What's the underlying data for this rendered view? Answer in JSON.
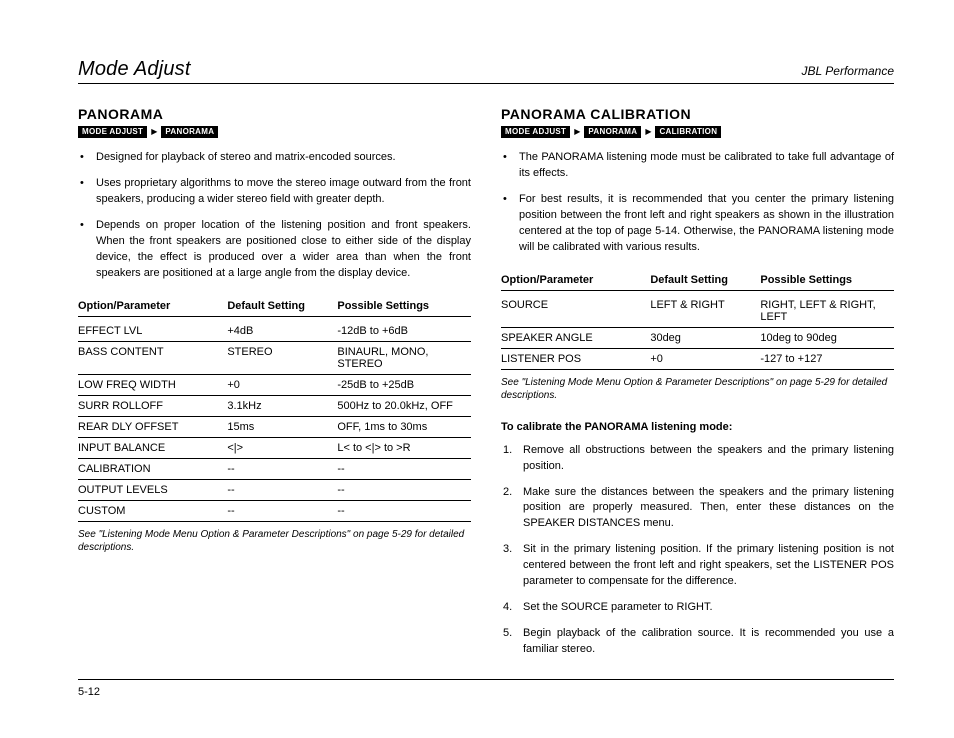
{
  "top": {
    "chapter": "Mode Adjust",
    "doc": "JBL Performance"
  },
  "footer": {
    "page": "5-12"
  },
  "left": {
    "title": "PANORAMA",
    "crumbs": [
      "MODE ADJUST",
      "PANORAMA"
    ],
    "bullets": [
      "Designed for playback of stereo and matrix-encoded sources.",
      "Uses proprietary algorithms to move the stereo image outward from the front speakers, producing a wider stereo field with greater depth.",
      "Depends on proper location of the listening position and front speakers. When the front speakers are positioned close to either side of the display device, the effect is produced over a wider area than when the front speakers are positioned at a large angle from the display device."
    ],
    "table": {
      "headers": [
        "Option/Parameter",
        "Default Setting",
        "Possible Settings"
      ],
      "rows": [
        [
          "EFFECT LVL",
          "+4dB",
          "-12dB to +6dB"
        ],
        [
          "BASS CONTENT",
          "STEREO",
          "BINAURL, MONO, STEREO"
        ],
        [
          "LOW FREQ WIDTH",
          "+0",
          "-25dB to +25dB"
        ],
        [
          "SURR ROLLOFF",
          "3.1kHz",
          "500Hz to 20.0kHz, OFF"
        ],
        [
          "REAR DLY OFFSET",
          "15ms",
          "OFF, 1ms to 30ms"
        ],
        [
          "INPUT BALANCE",
          "<|>",
          "L< to <|> to >R"
        ],
        [
          "CALIBRATION",
          "--",
          "--"
        ],
        [
          "OUTPUT LEVELS",
          "--",
          "--"
        ],
        [
          "CUSTOM",
          "--",
          "--"
        ]
      ]
    },
    "note": "See \"Listening Mode Menu Option & Parameter Descriptions\" on page 5-29 for detailed descriptions."
  },
  "right": {
    "title": "PANORAMA CALIBRATION",
    "crumbs": [
      "MODE ADJUST",
      "PANORAMA",
      "CALIBRATION"
    ],
    "bullets": [
      "The PANORAMA listening mode must be calibrated to take full advantage of its effects.",
      "For best results, it is recommended that you center the primary listening position between the front left and right speakers as shown in the illustration centered at the top of page 5-14. Otherwise, the PANORAMA listening mode will be calibrated with various results."
    ],
    "table": {
      "headers": [
        "Option/Parameter",
        "Default Setting",
        "Possible Settings"
      ],
      "rows": [
        [
          "SOURCE",
          "LEFT & RIGHT",
          "RIGHT, LEFT & RIGHT, LEFT"
        ],
        [
          "SPEAKER ANGLE",
          "30deg",
          "10deg to 90deg"
        ],
        [
          "LISTENER POS",
          "+0",
          "-127 to +127"
        ]
      ]
    },
    "note": "See \"Listening Mode Menu Option & Parameter Descriptions\" on page 5-29 for detailed descriptions.",
    "calibrate_heading": "To calibrate the PANORAMA listening mode:",
    "steps": [
      "Remove all obstructions between the speakers and the primary listening position.",
      "Make sure the distances between the speakers and the primary listening position are properly measured. Then, enter these distances on the SPEAKER DISTANCES menu.",
      "Sit in the primary listening position. If the primary listening position is not centered between the front left and right speakers, set the LISTENER POS parameter to compensate for the difference.",
      "Set the SOURCE parameter to RIGHT.",
      "Begin playback of the calibration source. It is recommended you use a familiar stereo."
    ]
  }
}
